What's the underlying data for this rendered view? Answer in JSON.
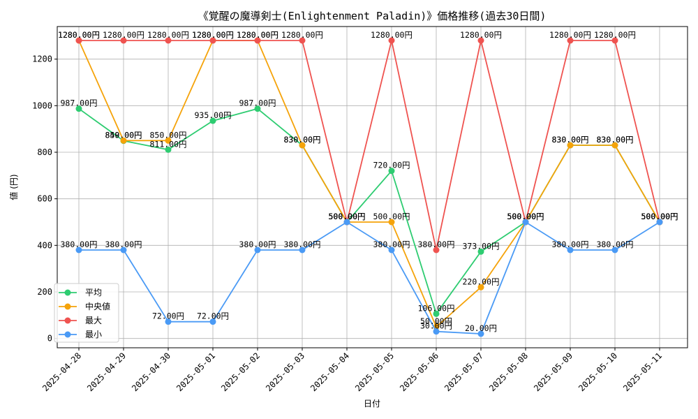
{
  "chart_data": {
    "type": "line",
    "title": "《覚醒の魔導剣士(Enlightenment Paladin)》価格推移(過去30日間)",
    "xlabel": "日付",
    "ylabel": "値 (円)",
    "ylim": [
      -40,
      1340
    ],
    "yticks": [
      0,
      200,
      400,
      600,
      800,
      1000,
      1200
    ],
    "grid": true,
    "legend_position": "lower-left",
    "label_suffix": "円",
    "categories": [
      "2025-04-28",
      "2025-04-29",
      "2025-04-30",
      "2025-05-01",
      "2025-05-02",
      "2025-05-03",
      "2025-05-04",
      "2025-05-05",
      "2025-05-06",
      "2025-05-07",
      "2025-05-08",
      "2025-05-09",
      "2025-05-10",
      "2025-05-11"
    ],
    "series": [
      {
        "name": "平均",
        "color": "#2ecc71",
        "values": [
          987,
          849,
          811,
          935,
          987,
          830,
          500,
          720,
          106,
          373,
          500,
          830,
          830,
          500
        ]
      },
      {
        "name": "中央値",
        "color": "#f5a30a",
        "values": [
          1280,
          850,
          850,
          1280,
          1280,
          830,
          500,
          500,
          50,
          220,
          500,
          830,
          830,
          500
        ]
      },
      {
        "name": "最大",
        "color": "#ef5350",
        "values": [
          1280,
          1280,
          1280,
          1280,
          1280,
          1280,
          500,
          1280,
          380,
          1280,
          500,
          1280,
          1280,
          500
        ]
      },
      {
        "name": "最小",
        "color": "#4a9af5",
        "values": [
          380,
          380,
          72,
          72,
          380,
          380,
          500,
          380,
          30,
          20,
          500,
          380,
          380,
          500
        ]
      }
    ]
  }
}
